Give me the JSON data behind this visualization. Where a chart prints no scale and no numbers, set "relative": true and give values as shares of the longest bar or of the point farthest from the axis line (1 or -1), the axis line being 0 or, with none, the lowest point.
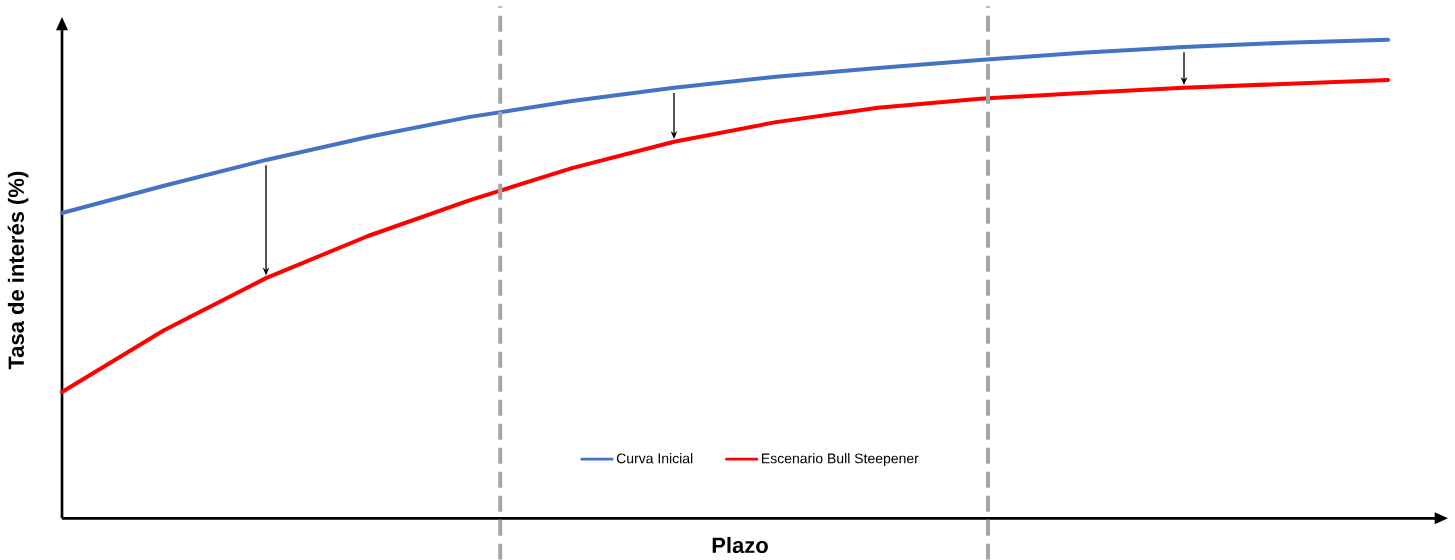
{
  "chart_data": {
    "type": "line",
    "xlabel": "Plazo",
    "ylabel": "Tasa de interés (%)",
    "relative": true,
    "categories": [
      null,
      null,
      null,
      null,
      null,
      null,
      null,
      null,
      null,
      null,
      null,
      null,
      null,
      null
    ],
    "series": [
      {
        "name": "Curva Inicial",
        "color": "#4472c4",
        "values": [
          0.638,
          0.695,
          0.749,
          0.797,
          0.839,
          0.872,
          0.9,
          0.923,
          0.941,
          0.958,
          0.973,
          0.985,
          0.994,
          1
        ]
      },
      {
        "name": "Escenario Bull Steepener",
        "color": "#ff0000",
        "values": [
          0.264,
          0.393,
          0.502,
          0.59,
          0.665,
          0.732,
          0.787,
          0.828,
          0.858,
          0.877,
          0.889,
          0.9,
          0.908,
          0.916
        ]
      }
    ],
    "legend": "bottom",
    "line_style": "solid"
  }
}
